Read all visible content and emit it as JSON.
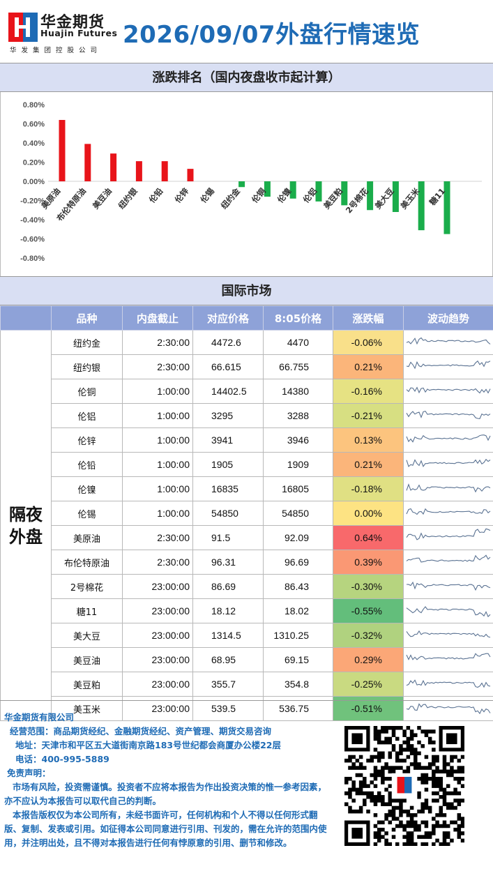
{
  "header": {
    "company_cn": "华金期货",
    "company_en": "Huajin Futures",
    "company_sub": "华发集团控股公司",
    "title": "2026/09/07外盘行情速览",
    "brand_color": "#1e6bb5"
  },
  "ranking_section": {
    "title": "涨跌排名（国内夜盘收市起计算）"
  },
  "chart_data": {
    "type": "bar",
    "title": "",
    "xlabel": "",
    "ylabel": "",
    "ylim": [
      -0.8,
      0.8
    ],
    "y_ticks": [
      "0.80%",
      "0.60%",
      "0.40%",
      "0.20%",
      "0.00%",
      "-0.20%",
      "-0.40%",
      "-0.60%",
      "-0.80%"
    ],
    "categories": [
      "美原油",
      "布伦特原油",
      "美豆油",
      "纽约银",
      "伦铅",
      "伦锌",
      "伦锡",
      "纽约金",
      "伦铜",
      "伦镍",
      "伦铝",
      "美豆粕",
      "2号棉花",
      "美大豆",
      "美玉米",
      "糖11"
    ],
    "values": [
      0.64,
      0.39,
      0.29,
      0.21,
      0.21,
      0.13,
      0.0,
      -0.06,
      -0.16,
      -0.18,
      -0.21,
      -0.25,
      -0.3,
      -0.32,
      -0.51,
      -0.55
    ],
    "positive_color": "#e8141a",
    "negative_color": "#1aad4b"
  },
  "intl_section": {
    "title": "国际市场",
    "columns": [
      "品种",
      "内盘截止",
      "对应价格",
      "8:05价格",
      "涨跌幅",
      "波动趋势"
    ],
    "group_label_line1": "隔夜",
    "group_label_line2": "外盘",
    "rows": [
      {
        "name": "纽约金",
        "close_time": "2:30:00",
        "ref_price": "4472.6",
        "price_805": "4470",
        "change": "-0.06%",
        "color": "#f9e08a"
      },
      {
        "name": "纽约银",
        "close_time": "2:30:00",
        "ref_price": "66.615",
        "price_805": "66.755",
        "change": "0.21%",
        "color": "#fbb57a"
      },
      {
        "name": "伦铜",
        "close_time": "1:00:00",
        "ref_price": "14402.5",
        "price_805": "14380",
        "change": "-0.16%",
        "color": "#e6e283"
      },
      {
        "name": "伦铝",
        "close_time": "1:00:00",
        "ref_price": "3295",
        "price_805": "3288",
        "change": "-0.21%",
        "color": "#d7df82"
      },
      {
        "name": "伦锌",
        "close_time": "1:00:00",
        "ref_price": "3941",
        "price_805": "3946",
        "change": "0.13%",
        "color": "#fcc47e"
      },
      {
        "name": "伦铅",
        "close_time": "1:00:00",
        "ref_price": "1905",
        "price_805": "1909",
        "change": "0.21%",
        "color": "#fbb57a"
      },
      {
        "name": "伦镍",
        "close_time": "1:00:00",
        "ref_price": "16835",
        "price_805": "16805",
        "change": "-0.18%",
        "color": "#e0e083"
      },
      {
        "name": "伦锡",
        "close_time": "1:00:00",
        "ref_price": "54850",
        "price_805": "54850",
        "change": "0.00%",
        "color": "#fde383"
      },
      {
        "name": "美原油",
        "close_time": "2:30:00",
        "ref_price": "91.5",
        "price_805": "92.09",
        "change": "0.64%",
        "color": "#f8696b"
      },
      {
        "name": "布伦特原油",
        "close_time": "2:30:00",
        "ref_price": "96.31",
        "price_805": "96.69",
        "change": "0.39%",
        "color": "#fa9874"
      },
      {
        "name": "2号棉花",
        "close_time": "23:00:00",
        "ref_price": "86.69",
        "price_805": "86.43",
        "change": "-0.30%",
        "color": "#b6d47f"
      },
      {
        "name": "糖11",
        "close_time": "23:00:00",
        "ref_price": "18.12",
        "price_805": "18.02",
        "change": "-0.55%",
        "color": "#63be7b"
      },
      {
        "name": "美大豆",
        "close_time": "23:00:00",
        "ref_price": "1314.5",
        "price_805": "1310.25",
        "change": "-0.32%",
        "color": "#b0d27f"
      },
      {
        "name": "美豆油",
        "close_time": "23:00:00",
        "ref_price": "68.95",
        "price_805": "69.15",
        "change": "0.29%",
        "color": "#fba777"
      },
      {
        "name": "美豆粕",
        "close_time": "23:00:00",
        "ref_price": "355.7",
        "price_805": "354.8",
        "change": "-0.25%",
        "color": "#c9da81"
      },
      {
        "name": "美玉米",
        "close_time": "23:00:00",
        "ref_price": "539.5",
        "price_805": "536.75",
        "change": "-0.51%",
        "color": "#70c27c"
      }
    ]
  },
  "footer": {
    "company": "华金期货有限公司",
    "scope": "经营范围：商品期货经纪、金融期货经纪、资产管理、期货交易咨询",
    "address": "地址：天津市和平区五大道街南京路183号世纪都会商厦办公楼22层",
    "phone": "电话：400-995-5889",
    "disclaimer_title": "免责声明：",
    "disclaimer_1": "市场有风险，投资需谨慎。投资者不应将本报告为作出投资决策的惟一参考因素，亦不应认为本报告可以取代自己的判断。",
    "disclaimer_2": "本报告版权仅为本公司所有，未经书面许可，任何机构和个人不得以任何形式翻版、复制、发表或引用。如征得本公司同意进行引用、刊发的，需在允许的范围内使用，并注明出处，且不得对本报告进行任何有悖原意的引用、删节和修改。"
  }
}
